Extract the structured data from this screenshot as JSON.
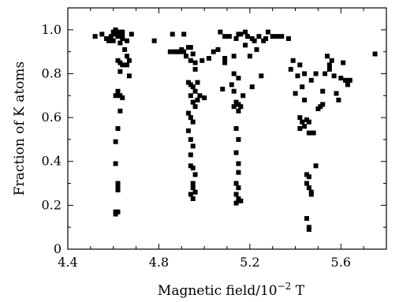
{
  "chart_data": {
    "type": "scatter",
    "xlabel": "Magnetic field/10",
    "xlabel_exponent": "−2",
    "xlabel_unit": " T",
    "ylabel": "Fraction of K atoms",
    "xlim": [
      4.4,
      5.8
    ],
    "ylim": [
      0.0,
      1.1
    ],
    "xticks": [
      4.4,
      4.8,
      5.2,
      5.6
    ],
    "xtick_labels": [
      "4.4",
      "4.8",
      "5.2",
      "5.6"
    ],
    "yticks": [
      0.0,
      0.2,
      0.4,
      0.6,
      0.8,
      1.0
    ],
    "ytick_labels": [
      "0",
      "0.2",
      "0.4",
      "0.6",
      "0.8",
      "1.0"
    ],
    "grid": false,
    "marker": "square",
    "color": "#000000",
    "series": [
      {
        "points": [
          [
            4.52,
            0.97
          ],
          [
            4.55,
            0.98
          ],
          [
            4.57,
            0.96
          ],
          [
            4.58,
            0.95
          ],
          [
            4.59,
            0.97
          ],
          [
            4.6,
            0.99
          ],
          [
            4.6,
            0.95
          ],
          [
            4.61,
            1.0
          ],
          [
            4.61,
            0.98
          ],
          [
            4.62,
            0.97
          ],
          [
            4.63,
            0.99
          ],
          [
            4.63,
            0.94
          ],
          [
            4.64,
            0.97
          ],
          [
            4.64,
            0.96
          ],
          [
            4.64,
            0.99
          ],
          [
            4.65,
            0.91
          ],
          [
            4.66,
            0.95
          ],
          [
            4.67,
            0.86
          ],
          [
            4.68,
            0.98
          ],
          [
            4.78,
            0.95
          ],
          [
            4.62,
            0.86
          ],
          [
            4.63,
            0.85
          ],
          [
            4.64,
            0.84
          ],
          [
            4.63,
            0.81
          ],
          [
            4.66,
            0.88
          ],
          [
            4.66,
            0.84
          ],
          [
            4.67,
            0.79
          ],
          [
            4.62,
            0.72
          ],
          [
            4.61,
            0.7
          ],
          [
            4.63,
            0.7
          ],
          [
            4.64,
            0.69
          ],
          [
            4.63,
            0.63
          ],
          [
            4.62,
            0.55
          ],
          [
            4.61,
            0.49
          ],
          [
            4.61,
            0.39
          ],
          [
            4.62,
            0.3
          ],
          [
            4.62,
            0.28
          ],
          [
            4.62,
            0.27
          ],
          [
            4.62,
            0.17
          ],
          [
            4.61,
            0.17
          ],
          [
            4.61,
            0.16
          ]
        ]
      },
      {
        "points": [
          [
            4.85,
            0.9
          ],
          [
            4.86,
            0.98
          ],
          [
            4.87,
            0.9
          ],
          [
            4.88,
            0.9
          ],
          [
            4.89,
            0.9
          ],
          [
            4.9,
            0.91
          ],
          [
            4.91,
            0.98
          ],
          [
            4.91,
            0.9
          ],
          [
            4.92,
            0.88
          ],
          [
            4.93,
            0.92
          ],
          [
            4.94,
            0.92
          ],
          [
            4.94,
            0.86
          ],
          [
            4.96,
            0.85
          ],
          [
            4.96,
            0.82
          ],
          [
            4.95,
            0.89
          ],
          [
            4.99,
            0.86
          ],
          [
            5.02,
            0.87
          ],
          [
            5.04,
            0.9
          ],
          [
            5.06,
            0.91
          ],
          [
            5.07,
            0.99
          ],
          [
            5.09,
            0.97
          ],
          [
            5.11,
            0.97
          ],
          [
            5.09,
            0.87
          ],
          [
            5.13,
            0.88
          ],
          [
            5.14,
            0.96
          ],
          [
            5.15,
            0.98
          ],
          [
            5.16,
            0.98
          ],
          [
            5.18,
            0.99
          ],
          [
            5.19,
            0.97
          ],
          [
            5.21,
            0.96
          ],
          [
            5.22,
            0.95
          ],
          [
            5.24,
            0.97
          ],
          [
            5.26,
            0.95
          ],
          [
            5.27,
            0.96
          ],
          [
            5.28,
            0.99
          ],
          [
            5.3,
            0.97
          ],
          [
            5.32,
            0.97
          ],
          [
            5.34,
            0.97
          ],
          [
            5.18,
            0.93
          ],
          [
            5.2,
            0.88
          ],
          [
            5.23,
            0.91
          ],
          [
            5.09,
            0.85
          ],
          [
            5.13,
            0.8
          ],
          [
            5.15,
            0.78
          ],
          [
            5.08,
            0.73
          ],
          [
            5.12,
            0.75
          ],
          [
            5.16,
            0.65
          ],
          [
            5.17,
            0.7
          ],
          [
            5.21,
            0.74
          ],
          [
            5.25,
            0.79
          ],
          [
            4.93,
            0.76
          ],
          [
            4.94,
            0.75
          ],
          [
            4.95,
            0.74
          ],
          [
            4.94,
            0.7
          ],
          [
            4.96,
            0.72
          ],
          [
            4.95,
            0.67
          ],
          [
            4.97,
            0.68
          ],
          [
            4.96,
            0.65
          ],
          [
            4.98,
            0.7
          ],
          [
            4.97,
            0.76
          ],
          [
            5.0,
            0.69
          ],
          [
            4.93,
            0.62
          ],
          [
            4.94,
            0.6
          ],
          [
            4.95,
            0.58
          ],
          [
            4.93,
            0.54
          ],
          [
            4.94,
            0.5
          ],
          [
            4.95,
            0.47
          ],
          [
            4.94,
            0.43
          ],
          [
            4.94,
            0.38
          ],
          [
            4.95,
            0.37
          ],
          [
            4.96,
            0.34
          ],
          [
            4.95,
            0.3
          ],
          [
            4.95,
            0.28
          ],
          [
            4.94,
            0.25
          ],
          [
            4.95,
            0.23
          ],
          [
            4.96,
            0.26
          ],
          [
            5.13,
            0.72
          ],
          [
            5.14,
            0.67
          ],
          [
            5.15,
            0.66
          ],
          [
            5.13,
            0.65
          ],
          [
            5.15,
            0.63
          ],
          [
            5.14,
            0.55
          ],
          [
            5.15,
            0.5
          ],
          [
            5.14,
            0.44
          ],
          [
            5.15,
            0.39
          ],
          [
            5.15,
            0.35
          ],
          [
            5.14,
            0.3
          ],
          [
            5.15,
            0.28
          ],
          [
            5.14,
            0.25
          ],
          [
            5.15,
            0.23
          ],
          [
            5.14,
            0.21
          ],
          [
            5.16,
            0.22
          ]
        ]
      },
      {
        "points": [
          [
            5.37,
            0.96
          ],
          [
            5.39,
            0.86
          ],
          [
            5.38,
            0.82
          ],
          [
            5.41,
            0.79
          ],
          [
            5.42,
            0.84
          ],
          [
            5.44,
            0.8
          ],
          [
            5.4,
            0.71
          ],
          [
            5.43,
            0.74
          ],
          [
            5.44,
            0.68
          ],
          [
            5.42,
            0.6
          ],
          [
            5.43,
            0.58
          ],
          [
            5.45,
            0.59
          ],
          [
            5.44,
            0.56
          ],
          [
            5.46,
            0.58
          ],
          [
            5.46,
            0.53
          ],
          [
            5.48,
            0.53
          ],
          [
            5.42,
            0.55
          ],
          [
            5.47,
            0.77
          ],
          [
            5.49,
            0.8
          ],
          [
            5.5,
            0.64
          ],
          [
            5.51,
            0.65
          ],
          [
            5.52,
            0.72
          ],
          [
            5.52,
            0.66
          ],
          [
            5.53,
            0.8
          ],
          [
            5.54,
            0.88
          ],
          [
            5.55,
            0.84
          ],
          [
            5.55,
            0.82
          ],
          [
            5.56,
            0.86
          ],
          [
            5.57,
            0.79
          ],
          [
            5.58,
            0.71
          ],
          [
            5.59,
            0.68
          ],
          [
            5.6,
            0.78
          ],
          [
            5.61,
            0.85
          ],
          [
            5.62,
            0.77
          ],
          [
            5.63,
            0.76
          ],
          [
            5.63,
            0.75
          ],
          [
            5.64,
            0.77
          ],
          [
            5.49,
            0.38
          ],
          [
            5.45,
            0.34
          ],
          [
            5.46,
            0.33
          ],
          [
            5.45,
            0.3
          ],
          [
            5.46,
            0.28
          ],
          [
            5.47,
            0.25
          ],
          [
            5.47,
            0.26
          ],
          [
            5.45,
            0.14
          ],
          [
            5.46,
            0.1
          ],
          [
            5.46,
            0.09
          ],
          [
            5.75,
            0.89
          ]
        ]
      }
    ]
  }
}
